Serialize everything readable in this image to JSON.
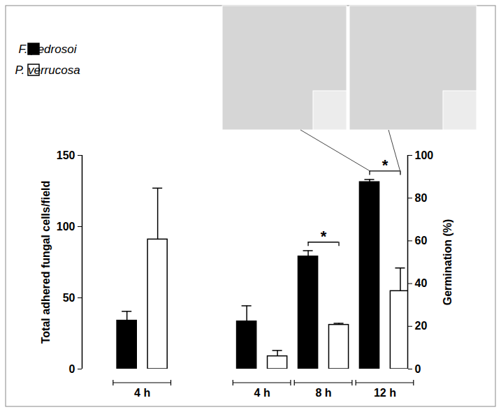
{
  "chart_data": {
    "type": "bar",
    "categories": [
      "4 h",
      "4 h",
      "8 h",
      "12 h"
    ],
    "ylabel": "Total adhered fungal cells/field",
    "y2label": "Germination (%)",
    "ylim": [
      0,
      150
    ],
    "yticks": [
      0,
      50,
      100,
      150
    ],
    "y2lim": [
      0,
      100
    ],
    "y2ticks": [
      0,
      20,
      40,
      60,
      80,
      100
    ],
    "legend": "upper left",
    "series": [
      {
        "name": "F. pedrosoi",
        "color": "#000000",
        "values": [
          34,
          null,
          null,
          null
        ],
        "errors": [
          6.5,
          null,
          null,
          null
        ]
      },
      {
        "name": "P. verrucosa",
        "color": "#ffffff",
        "values": [
          91,
          null,
          null,
          null
        ],
        "errors": [
          36,
          null,
          null,
          null
        ]
      },
      {
        "name": "F. pedrosoi",
        "color": "#000000",
        "axis": "y2",
        "values": [
          null,
          22.3,
          52.7,
          87.5
        ],
        "errors": [
          null,
          7.3,
          2.7,
          1.2
        ]
      },
      {
        "name": "P. verrucosa",
        "color": "#ffffff",
        "axis": "y2",
        "values": [
          null,
          6,
          20.7,
          36.5
        ],
        "errors": [
          null,
          2.7,
          0.7,
          10.8
        ]
      }
    ],
    "annotations": [
      {
        "text": "*",
        "category": 2
      },
      {
        "text": "*",
        "category": 3
      }
    ]
  }
}
